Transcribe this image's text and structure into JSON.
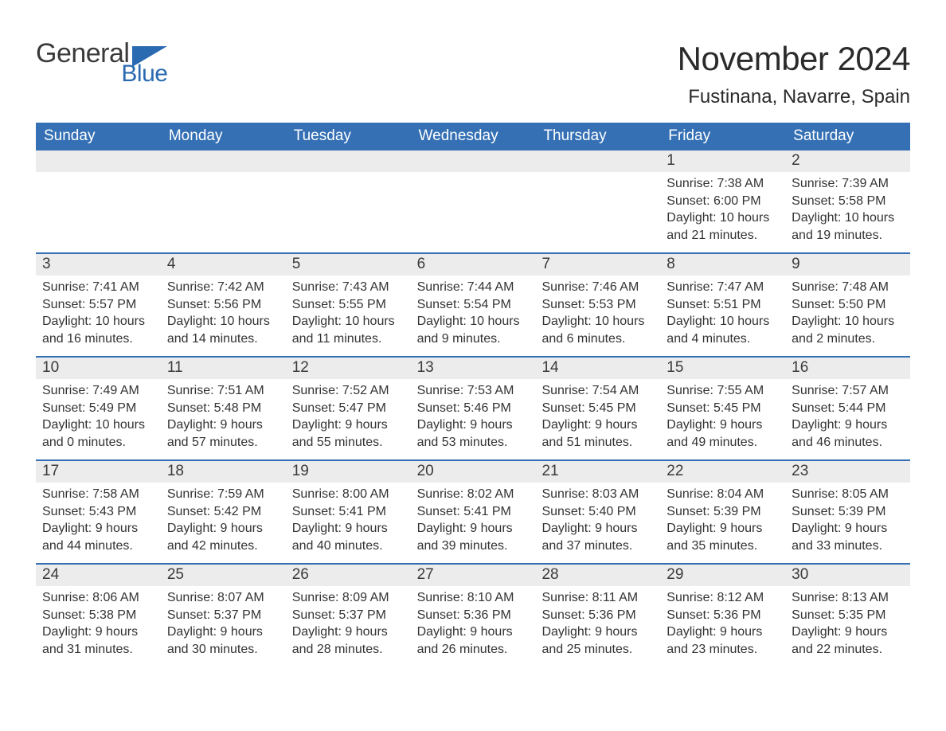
{
  "logo": {
    "general": "General",
    "blue": "Blue",
    "flag_color": "#2a6ab0"
  },
  "title": "November 2024",
  "location": "Fustinana, Navarre, Spain",
  "colors": {
    "header_bg": "#3570b4",
    "header_text": "#ffffff",
    "daynum_bg": "#ececec",
    "text": "#333333",
    "rule": "#3570b4"
  },
  "day_names": [
    "Sunday",
    "Monday",
    "Tuesday",
    "Wednesday",
    "Thursday",
    "Friday",
    "Saturday"
  ],
  "weeks": [
    [
      {
        "day": null
      },
      {
        "day": null
      },
      {
        "day": null
      },
      {
        "day": null
      },
      {
        "day": null
      },
      {
        "day": "1",
        "sunrise": "Sunrise: 7:38 AM",
        "sunset": "Sunset: 6:00 PM",
        "daylight1": "Daylight: 10 hours",
        "daylight2": "and 21 minutes."
      },
      {
        "day": "2",
        "sunrise": "Sunrise: 7:39 AM",
        "sunset": "Sunset: 5:58 PM",
        "daylight1": "Daylight: 10 hours",
        "daylight2": "and 19 minutes."
      }
    ],
    [
      {
        "day": "3",
        "sunrise": "Sunrise: 7:41 AM",
        "sunset": "Sunset: 5:57 PM",
        "daylight1": "Daylight: 10 hours",
        "daylight2": "and 16 minutes."
      },
      {
        "day": "4",
        "sunrise": "Sunrise: 7:42 AM",
        "sunset": "Sunset: 5:56 PM",
        "daylight1": "Daylight: 10 hours",
        "daylight2": "and 14 minutes."
      },
      {
        "day": "5",
        "sunrise": "Sunrise: 7:43 AM",
        "sunset": "Sunset: 5:55 PM",
        "daylight1": "Daylight: 10 hours",
        "daylight2": "and 11 minutes."
      },
      {
        "day": "6",
        "sunrise": "Sunrise: 7:44 AM",
        "sunset": "Sunset: 5:54 PM",
        "daylight1": "Daylight: 10 hours",
        "daylight2": "and 9 minutes."
      },
      {
        "day": "7",
        "sunrise": "Sunrise: 7:46 AM",
        "sunset": "Sunset: 5:53 PM",
        "daylight1": "Daylight: 10 hours",
        "daylight2": "and 6 minutes."
      },
      {
        "day": "8",
        "sunrise": "Sunrise: 7:47 AM",
        "sunset": "Sunset: 5:51 PM",
        "daylight1": "Daylight: 10 hours",
        "daylight2": "and 4 minutes."
      },
      {
        "day": "9",
        "sunrise": "Sunrise: 7:48 AM",
        "sunset": "Sunset: 5:50 PM",
        "daylight1": "Daylight: 10 hours",
        "daylight2": "and 2 minutes."
      }
    ],
    [
      {
        "day": "10",
        "sunrise": "Sunrise: 7:49 AM",
        "sunset": "Sunset: 5:49 PM",
        "daylight1": "Daylight: 10 hours",
        "daylight2": "and 0 minutes."
      },
      {
        "day": "11",
        "sunrise": "Sunrise: 7:51 AM",
        "sunset": "Sunset: 5:48 PM",
        "daylight1": "Daylight: 9 hours",
        "daylight2": "and 57 minutes."
      },
      {
        "day": "12",
        "sunrise": "Sunrise: 7:52 AM",
        "sunset": "Sunset: 5:47 PM",
        "daylight1": "Daylight: 9 hours",
        "daylight2": "and 55 minutes."
      },
      {
        "day": "13",
        "sunrise": "Sunrise: 7:53 AM",
        "sunset": "Sunset: 5:46 PM",
        "daylight1": "Daylight: 9 hours",
        "daylight2": "and 53 minutes."
      },
      {
        "day": "14",
        "sunrise": "Sunrise: 7:54 AM",
        "sunset": "Sunset: 5:45 PM",
        "daylight1": "Daylight: 9 hours",
        "daylight2": "and 51 minutes."
      },
      {
        "day": "15",
        "sunrise": "Sunrise: 7:55 AM",
        "sunset": "Sunset: 5:45 PM",
        "daylight1": "Daylight: 9 hours",
        "daylight2": "and 49 minutes."
      },
      {
        "day": "16",
        "sunrise": "Sunrise: 7:57 AM",
        "sunset": "Sunset: 5:44 PM",
        "daylight1": "Daylight: 9 hours",
        "daylight2": "and 46 minutes."
      }
    ],
    [
      {
        "day": "17",
        "sunrise": "Sunrise: 7:58 AM",
        "sunset": "Sunset: 5:43 PM",
        "daylight1": "Daylight: 9 hours",
        "daylight2": "and 44 minutes."
      },
      {
        "day": "18",
        "sunrise": "Sunrise: 7:59 AM",
        "sunset": "Sunset: 5:42 PM",
        "daylight1": "Daylight: 9 hours",
        "daylight2": "and 42 minutes."
      },
      {
        "day": "19",
        "sunrise": "Sunrise: 8:00 AM",
        "sunset": "Sunset: 5:41 PM",
        "daylight1": "Daylight: 9 hours",
        "daylight2": "and 40 minutes."
      },
      {
        "day": "20",
        "sunrise": "Sunrise: 8:02 AM",
        "sunset": "Sunset: 5:41 PM",
        "daylight1": "Daylight: 9 hours",
        "daylight2": "and 39 minutes."
      },
      {
        "day": "21",
        "sunrise": "Sunrise: 8:03 AM",
        "sunset": "Sunset: 5:40 PM",
        "daylight1": "Daylight: 9 hours",
        "daylight2": "and 37 minutes."
      },
      {
        "day": "22",
        "sunrise": "Sunrise: 8:04 AM",
        "sunset": "Sunset: 5:39 PM",
        "daylight1": "Daylight: 9 hours",
        "daylight2": "and 35 minutes."
      },
      {
        "day": "23",
        "sunrise": "Sunrise: 8:05 AM",
        "sunset": "Sunset: 5:39 PM",
        "daylight1": "Daylight: 9 hours",
        "daylight2": "and 33 minutes."
      }
    ],
    [
      {
        "day": "24",
        "sunrise": "Sunrise: 8:06 AM",
        "sunset": "Sunset: 5:38 PM",
        "daylight1": "Daylight: 9 hours",
        "daylight2": "and 31 minutes."
      },
      {
        "day": "25",
        "sunrise": "Sunrise: 8:07 AM",
        "sunset": "Sunset: 5:37 PM",
        "daylight1": "Daylight: 9 hours",
        "daylight2": "and 30 minutes."
      },
      {
        "day": "26",
        "sunrise": "Sunrise: 8:09 AM",
        "sunset": "Sunset: 5:37 PM",
        "daylight1": "Daylight: 9 hours",
        "daylight2": "and 28 minutes."
      },
      {
        "day": "27",
        "sunrise": "Sunrise: 8:10 AM",
        "sunset": "Sunset: 5:36 PM",
        "daylight1": "Daylight: 9 hours",
        "daylight2": "and 26 minutes."
      },
      {
        "day": "28",
        "sunrise": "Sunrise: 8:11 AM",
        "sunset": "Sunset: 5:36 PM",
        "daylight1": "Daylight: 9 hours",
        "daylight2": "and 25 minutes."
      },
      {
        "day": "29",
        "sunrise": "Sunrise: 8:12 AM",
        "sunset": "Sunset: 5:36 PM",
        "daylight1": "Daylight: 9 hours",
        "daylight2": "and 23 minutes."
      },
      {
        "day": "30",
        "sunrise": "Sunrise: 8:13 AM",
        "sunset": "Sunset: 5:35 PM",
        "daylight1": "Daylight: 9 hours",
        "daylight2": "and 22 minutes."
      }
    ]
  ]
}
